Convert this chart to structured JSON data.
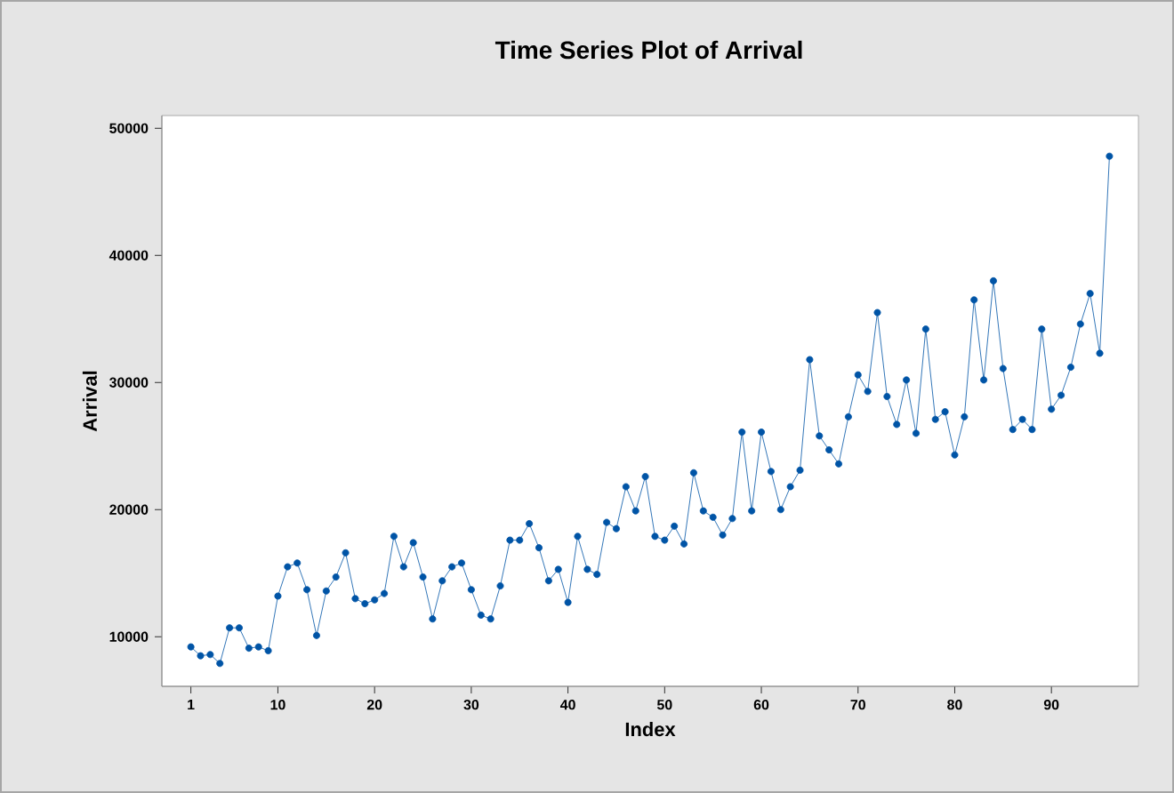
{
  "chart_data": {
    "type": "line",
    "title": "Time Series Plot of Arrival",
    "xlabel": "Index",
    "ylabel": "Arrival",
    "x": [
      1,
      2,
      3,
      4,
      5,
      6,
      7,
      8,
      9,
      10,
      11,
      12,
      13,
      14,
      15,
      16,
      17,
      18,
      19,
      20,
      21,
      22,
      23,
      24,
      25,
      26,
      27,
      28,
      29,
      30,
      31,
      32,
      33,
      34,
      35,
      36,
      37,
      38,
      39,
      40,
      41,
      42,
      43,
      44,
      45,
      46,
      47,
      48,
      49,
      50,
      51,
      52,
      53,
      54,
      55,
      56,
      57,
      58,
      59,
      60,
      61,
      62,
      63,
      64,
      65,
      66,
      67,
      68,
      69,
      70,
      71,
      72,
      73,
      74,
      75,
      76,
      77,
      78,
      79,
      80,
      81,
      82,
      83,
      84,
      85,
      86,
      87,
      88,
      89,
      90,
      91,
      92,
      93,
      94,
      95,
      96
    ],
    "series": [
      {
        "color": "#0054a6",
        "values": [
          9200,
          8500,
          8600,
          7900,
          10700,
          10700,
          9100,
          9200,
          8900,
          13200,
          15500,
          15800,
          13700,
          10100,
          13600,
          14700,
          16600,
          13000,
          12600,
          12900,
          13400,
          17900,
          15500,
          17400,
          14700,
          11400,
          14400,
          15500,
          15800,
          13700,
          11700,
          11400,
          14000,
          17600,
          17600,
          18900,
          17000,
          14400,
          15300,
          12700,
          17900,
          15300,
          14900,
          19000,
          18500,
          21800,
          19900,
          22600,
          17900,
          17600,
          18700,
          17300,
          22900,
          19900,
          19400,
          18000,
          19300,
          26100,
          19900,
          26100,
          23000,
          20000,
          21800,
          23100,
          31800,
          25800,
          24700,
          23600,
          27300,
          30600,
          29300,
          35500,
          28900,
          26700,
          30200,
          26000,
          34200,
          27100,
          27700,
          24300,
          27300,
          36500,
          30200,
          38000,
          31100,
          26300,
          27100,
          26300,
          34200,
          27900,
          29000,
          31200,
          34600,
          37000,
          32300,
          47800
        ]
      }
    ],
    "xlim": [
      -2,
      99
    ],
    "ylim": [
      6100,
      51000
    ],
    "xticks": [
      1,
      10,
      20,
      30,
      40,
      50,
      60,
      70,
      80,
      90
    ],
    "yticks": [
      10000,
      20000,
      30000,
      40000,
      50000
    ],
    "grid": false,
    "marker": "circle",
    "line_style": "solid"
  }
}
